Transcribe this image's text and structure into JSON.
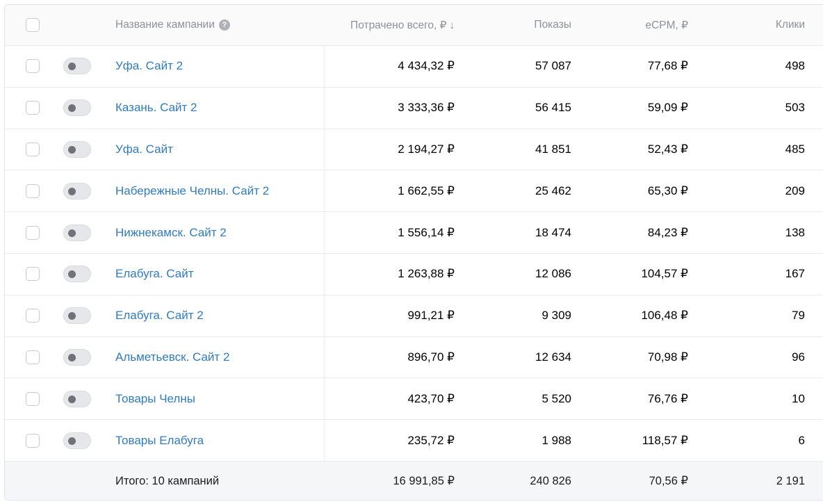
{
  "header": {
    "name": "Название кампании",
    "spent": "Потрачено всего, ₽",
    "shows": "Показы",
    "ecpm": "eCPM, ₽",
    "clicks": "Клики"
  },
  "rows": [
    {
      "name": "Уфа. Сайт 2",
      "spent": "4 434,32 ₽",
      "shows": "57 087",
      "ecpm": "77,68 ₽",
      "clicks": "498"
    },
    {
      "name": "Казань. Сайт 2",
      "spent": "3 333,36 ₽",
      "shows": "56 415",
      "ecpm": "59,09 ₽",
      "clicks": "503"
    },
    {
      "name": "Уфа. Сайт",
      "spent": "2 194,27 ₽",
      "shows": "41 851",
      "ecpm": "52,43 ₽",
      "clicks": "485"
    },
    {
      "name": "Набережные Челны. Сайт 2",
      "spent": "1 662,55 ₽",
      "shows": "25 462",
      "ecpm": "65,30 ₽",
      "clicks": "209"
    },
    {
      "name": "Нижнекамск. Сайт 2",
      "spent": "1 556,14 ₽",
      "shows": "18 474",
      "ecpm": "84,23 ₽",
      "clicks": "138"
    },
    {
      "name": "Елабуга. Сайт",
      "spent": "1 263,88 ₽",
      "shows": "12 086",
      "ecpm": "104,57 ₽",
      "clicks": "167"
    },
    {
      "name": "Елабуга. Сайт 2",
      "spent": "991,21 ₽",
      "shows": "9 309",
      "ecpm": "106,48 ₽",
      "clicks": "79"
    },
    {
      "name": "Альметьевск. Сайт 2",
      "spent": "896,70 ₽",
      "shows": "12 634",
      "ecpm": "70,98 ₽",
      "clicks": "96"
    },
    {
      "name": "Товары Челны",
      "spent": "423,70 ₽",
      "shows": "5 520",
      "ecpm": "76,76 ₽",
      "clicks": "10"
    },
    {
      "name": "Товары Елабуга",
      "spent": "235,72 ₽",
      "shows": "1 988",
      "ecpm": "118,57 ₽",
      "clicks": "6"
    }
  ],
  "footer": {
    "name": "Итого: 10 кампаний",
    "spent": "16 991,85 ₽",
    "shows": "240 826",
    "ecpm": "70,56 ₽",
    "clicks": "2 191"
  },
  "icons": {
    "help": "help-icon",
    "sort": "sort-down-icon"
  },
  "colors": {
    "link": "#2f7bc0",
    "header_text": "#8d9198"
  }
}
